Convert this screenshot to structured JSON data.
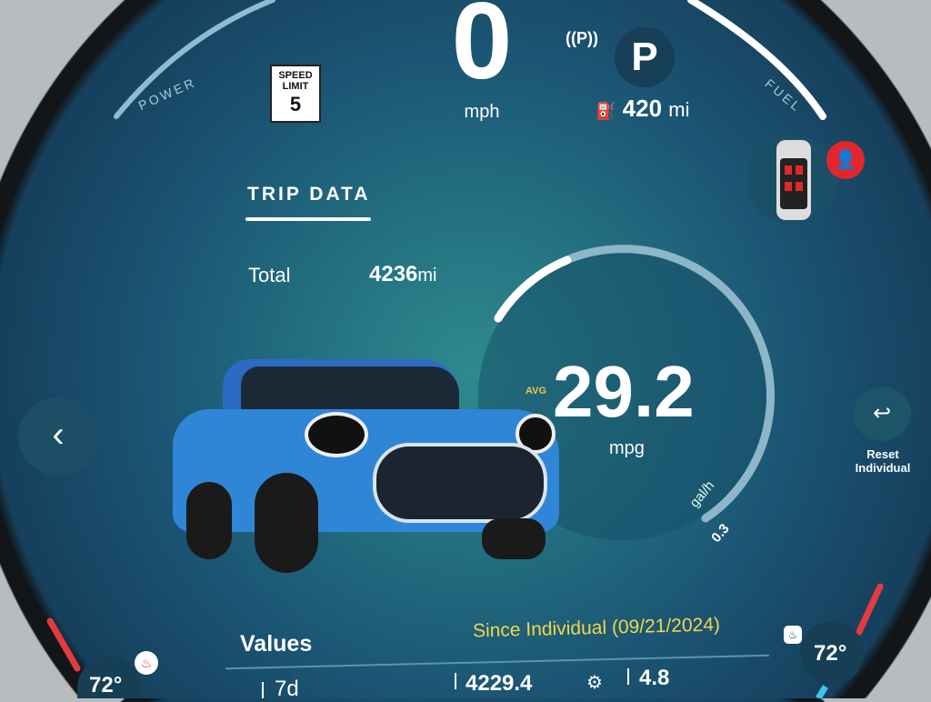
{
  "speed": {
    "value": "0",
    "unit": "mph"
  },
  "speed_limit": {
    "line1": "SPEED",
    "line2": "LIMIT",
    "value": "5"
  },
  "gauges": {
    "power_label": "POWER",
    "fuel_label": "FUEL"
  },
  "gear": {
    "parking_sensor": "((P))",
    "current": "P"
  },
  "range": {
    "value": "420",
    "unit": "mi"
  },
  "trip": {
    "title": "TRIP DATA",
    "total_label": "Total",
    "total_value": "4236",
    "total_unit": "mi"
  },
  "consumption": {
    "avg_label": "AVG",
    "value": "29.2",
    "unit": "mpg",
    "scale_unit": "gal/h",
    "scale_value": "0.3"
  },
  "reset": {
    "label_line1": "Reset",
    "label_line2": "Individual"
  },
  "values": {
    "title": "Values",
    "since": "Since Individual (09/21/2024)",
    "cells": [
      "7d",
      "4229.4",
      "4.8"
    ]
  },
  "climate": {
    "left_temp": "72°",
    "right_temp": "72°"
  },
  "colors": {
    "accent_yellow": "#f2d64b",
    "warning_red": "#e3262c",
    "car_blue": "#2f86d6"
  }
}
